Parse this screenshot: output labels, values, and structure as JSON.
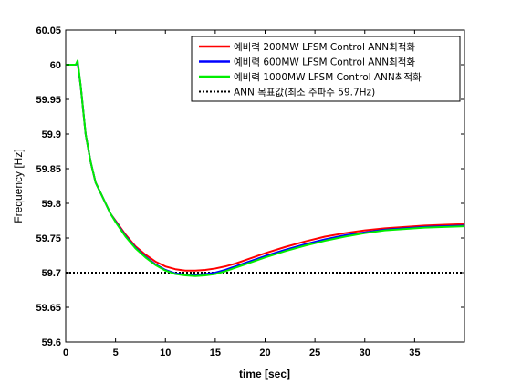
{
  "chart_data": {
    "type": "line",
    "title": "",
    "xlabel": "time [sec]",
    "ylabel": "Frequency [Hz]",
    "xlim": [
      0,
      40
    ],
    "ylim": [
      59.6,
      60.05
    ],
    "xticks": [
      0,
      5,
      10,
      15,
      20,
      25,
      30,
      35
    ],
    "yticks": [
      59.6,
      59.65,
      59.7,
      59.75,
      59.8,
      59.85,
      59.9,
      59.95,
      60,
      60.05
    ],
    "grid": false,
    "legend_position": "top-right",
    "series": [
      {
        "name": "예비력 200MW LFSM Control ANN최적화",
        "color": "#ff0000",
        "style": "solid",
        "x": [
          0,
          1,
          1.2,
          1.5,
          2,
          2.5,
          3,
          3.5,
          4,
          4.5,
          5,
          6,
          7,
          8,
          9,
          10,
          11,
          12,
          13,
          14,
          15,
          16,
          17,
          18,
          20,
          22,
          24,
          26,
          28,
          30,
          32,
          34,
          36,
          38,
          40
        ],
        "y": [
          60,
          60,
          60.002,
          59.97,
          59.9,
          59.86,
          59.83,
          59.815,
          59.8,
          59.785,
          59.775,
          59.755,
          59.738,
          59.726,
          59.716,
          59.709,
          59.705,
          59.703,
          59.703,
          59.704,
          59.706,
          59.709,
          59.713,
          59.718,
          59.728,
          59.737,
          59.745,
          59.752,
          59.757,
          59.761,
          59.764,
          59.766,
          59.768,
          59.769,
          59.77
        ]
      },
      {
        "name": "예비력 600MW LFSM Control ANN최적화",
        "color": "#0000ff",
        "style": "solid",
        "x": [
          0,
          1,
          1.2,
          1.5,
          2,
          2.5,
          3,
          3.5,
          4,
          4.5,
          5,
          6,
          7,
          8,
          9,
          10,
          11,
          12,
          13,
          14,
          15,
          16,
          17,
          18,
          20,
          22,
          24,
          26,
          28,
          30,
          32,
          34,
          36,
          38,
          40
        ],
        "y": [
          60,
          60,
          60.003,
          59.97,
          59.9,
          59.86,
          59.83,
          59.815,
          59.8,
          59.785,
          59.774,
          59.753,
          59.736,
          59.723,
          59.712,
          59.704,
          59.699,
          59.697,
          59.697,
          59.698,
          59.7,
          59.704,
          59.709,
          59.714,
          59.724,
          59.733,
          59.741,
          59.748,
          59.754,
          59.758,
          59.762,
          59.764,
          59.766,
          59.767,
          59.768
        ]
      },
      {
        "name": "예비력 1000MW LFSM Control ANN최적화",
        "color": "#00ee00",
        "style": "solid",
        "x": [
          0,
          1,
          1.2,
          1.5,
          2,
          2.5,
          3,
          3.5,
          4,
          4.5,
          5,
          6,
          7,
          8,
          9,
          10,
          11,
          12,
          13,
          14,
          15,
          16,
          17,
          18,
          20,
          22,
          24,
          26,
          28,
          30,
          32,
          34,
          36,
          38,
          40
        ],
        "y": [
          60,
          60,
          60.006,
          59.97,
          59.9,
          59.86,
          59.83,
          59.815,
          59.8,
          59.785,
          59.773,
          59.752,
          59.735,
          59.722,
          59.711,
          59.703,
          59.698,
          59.696,
          59.695,
          59.696,
          59.698,
          59.702,
          59.707,
          59.712,
          59.722,
          59.731,
          59.739,
          59.746,
          59.752,
          59.757,
          59.761,
          59.763,
          59.765,
          59.766,
          59.767
        ]
      },
      {
        "name": "ANN 목표값(최소 주파수 59.7Hz)",
        "color": "#000000",
        "style": "dotted",
        "x": [
          0,
          40
        ],
        "y": [
          59.7,
          59.7
        ]
      }
    ]
  }
}
